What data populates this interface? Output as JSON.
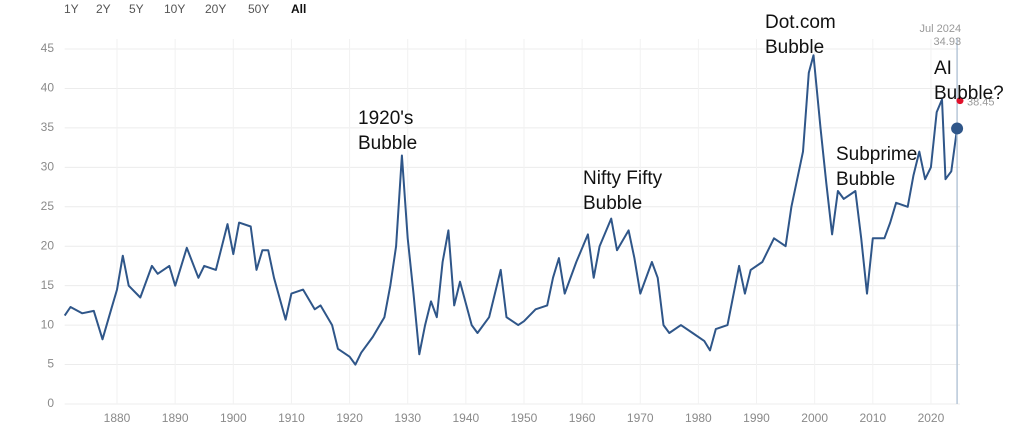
{
  "chart_data": {
    "type": "line",
    "range_buttons": [
      "1Y",
      "2Y",
      "5Y",
      "10Y",
      "20Y",
      "50Y",
      "All"
    ],
    "selected_range": "All",
    "color": "#2f5689",
    "x": [
      1871,
      1872,
      1874,
      1876,
      1877.5,
      1879,
      1880,
      1881,
      1882,
      1884,
      1886,
      1887,
      1889,
      1890,
      1892,
      1894,
      1895,
      1897,
      1899,
      1900,
      1901,
      1903,
      1904,
      1905,
      1906,
      1907,
      1909,
      1910,
      1912,
      1914,
      1915,
      1917,
      1918,
      1920,
      1921,
      1922,
      1924,
      1926,
      1927,
      1928,
      1929,
      1930,
      1931,
      1932,
      1933,
      1934,
      1935,
      1936,
      1937,
      1938,
      1939,
      1941,
      1942,
      1944,
      1946,
      1947,
      1949,
      1950,
      1952,
      1954,
      1955,
      1956,
      1957,
      1959,
      1961,
      1962,
      1963,
      1965,
      1966,
      1968,
      1969,
      1970,
      1972,
      1973,
      1974,
      1975,
      1977,
      1979,
      1981,
      1982,
      1983,
      1985,
      1987,
      1988,
      1989,
      1991,
      1993,
      1995,
      1996,
      1998,
      1999,
      1999.8,
      2001,
      2002,
      2003,
      2004,
      2005,
      2007,
      2008,
      2009,
      2010,
      2012,
      2013,
      2014,
      2016,
      2017,
      2018,
      2019,
      2020,
      2021,
      2021.9,
      2022.5,
      2023.5,
      2024.5
    ],
    "values": [
      11.2,
      12.3,
      11.5,
      11.8,
      8.2,
      12,
      14.5,
      18.8,
      15,
      13.5,
      17.5,
      16.5,
      17.5,
      15,
      19.8,
      16,
      17.5,
      17,
      22.8,
      19,
      23,
      22.5,
      17,
      19.5,
      19.5,
      16,
      10.7,
      14,
      14.5,
      12,
      12.5,
      10,
      7,
      6,
      5,
      6.5,
      8.5,
      11,
      15,
      20,
      31.5,
      21,
      14,
      6.3,
      10,
      13,
      11,
      18,
      22,
      12.5,
      15.5,
      10,
      9,
      11,
      17,
      11,
      10,
      10.5,
      12,
      12.5,
      16,
      18.5,
      14,
      18,
      21.5,
      16,
      20,
      23.5,
      19.5,
      22,
      18.5,
      14,
      18,
      16,
      10,
      9,
      10,
      9,
      8,
      6.8,
      9.5,
      10,
      17.5,
      14,
      17,
      18,
      21,
      20,
      25,
      32,
      42,
      44.2,
      35,
      28,
      21.5,
      27,
      26,
      27,
      21,
      14,
      21,
      21,
      23,
      25.5,
      25,
      29,
      32,
      28.5,
      30,
      37,
      38.6,
      28.5,
      29.5,
      34.93
    ],
    "xlim": [
      1871,
      2025
    ],
    "ylim": [
      0,
      45
    ],
    "xticks": [
      1880,
      1890,
      1900,
      1910,
      1920,
      1930,
      1940,
      1950,
      1960,
      1970,
      1980,
      1990,
      2000,
      2010,
      2020
    ],
    "yticks": [
      0,
      5,
      10,
      15,
      20,
      25,
      30,
      35,
      40,
      45
    ],
    "grid": true,
    "annotations": [
      [
        "1920's",
        "Bubble"
      ],
      [
        "Nifty Fifty",
        "Bubble"
      ],
      [
        "Dot.com",
        "Bubble"
      ],
      [
        "Subprime",
        "Bubble"
      ],
      [
        "AI",
        "Bubble?"
      ]
    ],
    "tooltip": {
      "date": "Jul 2024",
      "x": 2024.5,
      "value": 34.93
    },
    "latest": {
      "x": 2025,
      "value": 38.45,
      "color": "#e0102a"
    }
  }
}
